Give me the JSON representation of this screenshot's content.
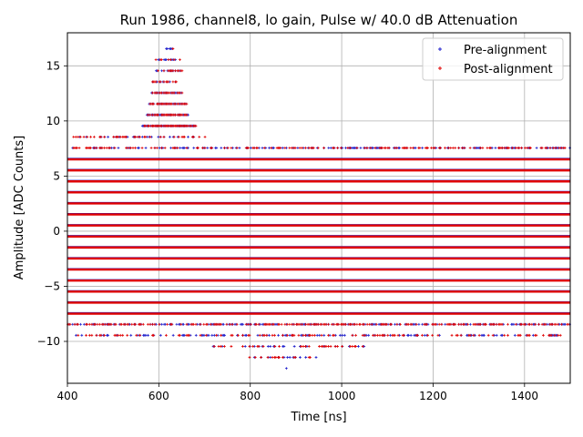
{
  "chart_data": {
    "type": "scatter",
    "title": "Run 1986, channel8, lo gain, Pulse w/ 40.0 dB Attenuation",
    "xlabel": "Time [ns]",
    "ylabel": "Amplitude [ADC Counts]",
    "xlim": [
      400,
      1500
    ],
    "ylim": [
      -13.8,
      18.0
    ],
    "xticks": [
      400,
      600,
      800,
      1000,
      1200,
      1400
    ],
    "yticks": [
      -10,
      -5,
      0,
      5,
      10,
      15
    ],
    "grid": true,
    "legend_position": "top-right",
    "level_step": 1.0,
    "level_offset": 0.55,
    "dense_levels": [
      -7.45,
      -6.45,
      -5.45,
      -4.45,
      -3.45,
      -2.45,
      -1.45,
      -0.45,
      0.55,
      1.55,
      2.55,
      3.55,
      4.55,
      5.55,
      6.55
    ],
    "series": [
      {
        "name": "Pre-alignment",
        "color": "#1f1fcc",
        "marker": "+",
        "levels": [
          {
            "y": 16.55,
            "x_range": [
              610,
              635
            ],
            "density": 0.3
          },
          {
            "y": 15.55,
            "x_range": [
              590,
              645
            ],
            "density": 0.3
          },
          {
            "y": 14.55,
            "x_range": [
              595,
              650
            ],
            "density": 0.6
          },
          {
            "y": 13.55,
            "x_range": [
              585,
              645
            ],
            "density": 0.6
          },
          {
            "y": 12.55,
            "x_range": [
              585,
              650
            ],
            "density": 0.8
          },
          {
            "y": 11.55,
            "x_range": [
              580,
              660
            ],
            "density": 0.8
          },
          {
            "y": 10.55,
            "x_range": [
              575,
              665
            ],
            "density": 0.8
          },
          {
            "y": 9.55,
            "x_range": [
              565,
              680
            ],
            "density": 0.8
          },
          {
            "y": 8.55,
            "x_range": [
              410,
              700
            ],
            "density": 0.25
          },
          {
            "y": 7.55,
            "x_range": [
              400,
              1500
            ],
            "density": 0.35
          },
          {
            "y": -8.45,
            "x_range": [
              400,
              1500
            ],
            "density": 0.45
          },
          {
            "y": -9.45,
            "x_range": [
              420,
              1480
            ],
            "density": 0.25
          },
          {
            "y": -10.45,
            "x_range": [
              720,
              1050
            ],
            "density": 0.2
          },
          {
            "y": -11.45,
            "x_range": [
              760,
              960
            ],
            "density": 0.15
          },
          {
            "y": -12.45,
            "x_range": [
              860,
              880
            ],
            "density": 0.15
          }
        ]
      },
      {
        "name": "Post-alignment",
        "color": "#e00000",
        "marker": "+",
        "levels": [
          {
            "y": 16.55,
            "x_range": [
              610,
              635
            ],
            "density": 0.3
          },
          {
            "y": 15.55,
            "x_range": [
              590,
              645
            ],
            "density": 0.3
          },
          {
            "y": 14.55,
            "x_range": [
              595,
              650
            ],
            "density": 0.6
          },
          {
            "y": 13.55,
            "x_range": [
              585,
              645
            ],
            "density": 0.6
          },
          {
            "y": 12.55,
            "x_range": [
              585,
              650
            ],
            "density": 0.8
          },
          {
            "y": 11.55,
            "x_range": [
              580,
              660
            ],
            "density": 0.8
          },
          {
            "y": 10.55,
            "x_range": [
              575,
              665
            ],
            "density": 0.8
          },
          {
            "y": 9.55,
            "x_range": [
              565,
              680
            ],
            "density": 0.8
          },
          {
            "y": 8.55,
            "x_range": [
              410,
              700
            ],
            "density": 0.25
          },
          {
            "y": 7.55,
            "x_range": [
              400,
              1500
            ],
            "density": 0.35
          },
          {
            "y": -8.45,
            "x_range": [
              400,
              1500
            ],
            "density": 0.45
          },
          {
            "y": -9.45,
            "x_range": [
              420,
              1480
            ],
            "density": 0.25
          },
          {
            "y": -10.45,
            "x_range": [
              720,
              1050
            ],
            "density": 0.2
          },
          {
            "y": -11.45,
            "x_range": [
              760,
              960
            ],
            "density": 0.15
          },
          {
            "y": -12.45,
            "x_range": [
              860,
              880
            ],
            "density": 0.15
          }
        ]
      }
    ]
  }
}
